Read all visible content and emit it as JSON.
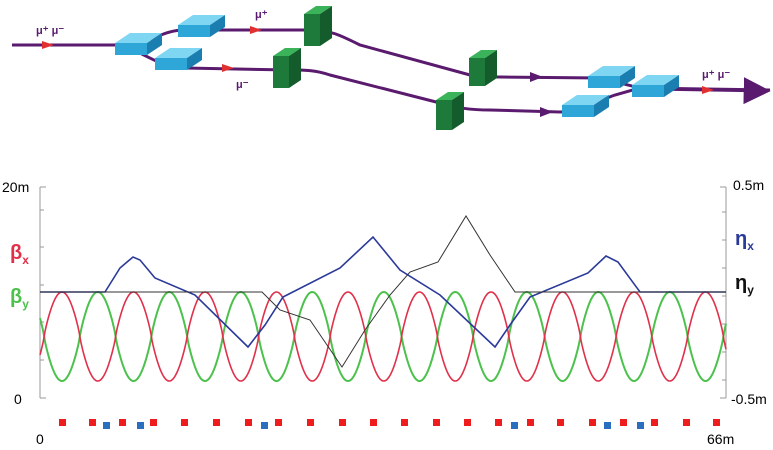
{
  "beamline": {
    "labels": {
      "input": "μ⁺ μ⁻",
      "upper": "μ⁺",
      "lower": "μ⁻",
      "output": "μ⁺ μ⁻"
    },
    "colors": {
      "beam": "#5a1a6e",
      "arrow": "#e03030",
      "dipole": "#2fa6d8",
      "block": "#1e7a3a"
    }
  },
  "lattice_plot": {
    "left_axis": {
      "min_label": "0",
      "max_label": "20m",
      "min": 0,
      "max": 20
    },
    "right_axis": {
      "min_label": "-0.5m",
      "max_label": "0.5m",
      "min": -0.5,
      "max": 0.5
    },
    "x_axis": {
      "min_label": "0",
      "max_label": "66m",
      "min": 0,
      "max": 66
    },
    "legend": {
      "beta_x": "β",
      "beta_x_sub": "x",
      "beta_y": "β",
      "beta_y_sub": "y",
      "eta_x": "η",
      "eta_x_sub": "x",
      "eta_y": "η",
      "eta_y_sub": "y"
    },
    "colors": {
      "beta_x": "#e0304a",
      "beta_y": "#4cc14c",
      "eta_x": "#2b3a99",
      "eta_y": "#333333",
      "magnet_red": "#ee1c1c",
      "magnet_blue": "#2a6fbf"
    }
  }
}
